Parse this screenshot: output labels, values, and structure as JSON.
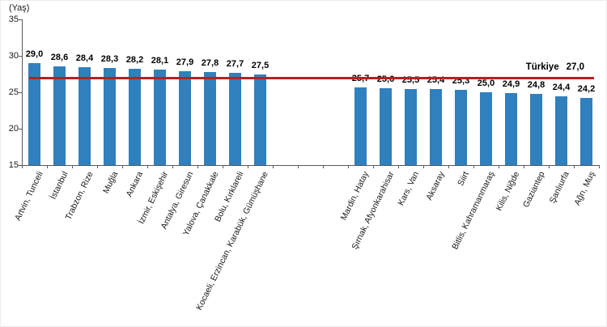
{
  "chart_data": {
    "type": "bar",
    "title": "",
    "unit_label": "(Yaş)",
    "xlabel": "",
    "ylabel": "(Yaş)",
    "ylim": [
      15,
      35
    ],
    "yticks": [
      15,
      20,
      25,
      30,
      35
    ],
    "grid": false,
    "legend": null,
    "bar_color": "#2f80bd",
    "axis_color": "#595959",
    "reference_line": {
      "label": "Türkiye",
      "value": 27.0,
      "value_label": "27,0",
      "color": "#b22222"
    },
    "groups": [
      {
        "name": "highest-median-age-provinces",
        "categories": [
          "Artvin, Tunceli",
          "İstanbul",
          "Trabzon, Rize",
          "Muğla",
          "Ankara",
          "İzmir, Eskişehir",
          "Antalya, Giresun",
          "Yalova, Çanakkale",
          "Bolu, Kırklareli",
          "Kocaeli, Erzincan, Karabük, Gümüşhane"
        ],
        "values": [
          29.0,
          28.6,
          28.4,
          28.3,
          28.2,
          28.1,
          27.9,
          27.8,
          27.7,
          27.5
        ],
        "value_labels": [
          "29,0",
          "28,6",
          "28,4",
          "28,3",
          "28,2",
          "28,1",
          "27,9",
          "27,8",
          "27,7",
          "27,5"
        ]
      },
      {
        "name": "lowest-median-age-provinces",
        "categories": [
          "Mardin, Hatay",
          "Şırnak, Afyonkarahisar",
          "Kars, Van",
          "Aksaray",
          "Siirt",
          "Bitlis, Kahramanmaraş",
          "Kilis, Niğde",
          "Gaziantep",
          "Şanlıurfa",
          "Ağrı, Muş"
        ],
        "values": [
          25.7,
          25.6,
          25.5,
          25.4,
          25.3,
          25.0,
          24.9,
          24.8,
          24.4,
          24.2
        ],
        "value_labels": [
          "25,7",
          "25,6",
          "25,5",
          "25,4",
          "25,3",
          "25,0",
          "24,9",
          "24,8",
          "24,4",
          "24,2"
        ]
      }
    ]
  }
}
